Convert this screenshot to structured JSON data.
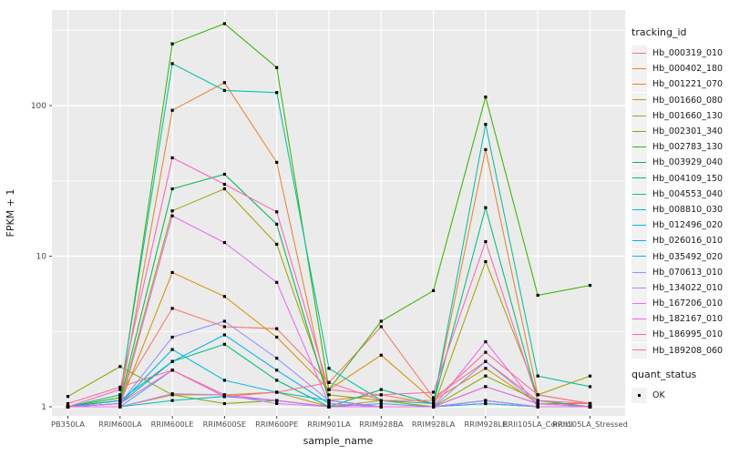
{
  "chart_data": {
    "type": "line",
    "title": "",
    "xlabel": "sample_name",
    "ylabel": "FPKM + 1",
    "yscale": "log10",
    "ylim": [
      0.87,
      434
    ],
    "grid": true,
    "legend_position": "right",
    "y_ticks": {
      "values": [
        1,
        10,
        100
      ],
      "labels": [
        "1",
        "10",
        "100"
      ]
    },
    "y_minor_ticks": [
      3.162,
      31.62,
      316.2
    ],
    "categories": [
      "PB350LA",
      "RRIM600LA",
      "RRIM600LE",
      "RRIM600SE",
      "RRIM600PE",
      "RRIM901LA",
      "RRIM928BA",
      "RRIM928LA",
      "RRIM928LE",
      "RRII105LA_Control",
      "RRII105LA_Stressed"
    ],
    "series": [
      {
        "name": "Hb_000319_010",
        "color": "#F8766D",
        "values": [
          1.0,
          1.2,
          4.5,
          3.4,
          3.3,
          1.45,
          3.4,
          1.15,
          2.0,
          1.1,
          1.0
        ]
      },
      {
        "name": "Hb_000402_180",
        "color": "#EA8331",
        "values": [
          1.0,
          1.1,
          93,
          142,
          42,
          1.1,
          1.2,
          1.05,
          51,
          1.2,
          1.05
        ]
      },
      {
        "name": "Hb_001221_070",
        "color": "#D89000",
        "values": [
          1.0,
          1.05,
          7.8,
          5.4,
          2.9,
          1.3,
          2.2,
          1.1,
          1.8,
          1.05,
          1.05
        ]
      },
      {
        "name": "Hb_001660_080",
        "color": "#C09B00",
        "values": [
          1.0,
          1.0,
          1.2,
          1.2,
          1.25,
          1.0,
          1.1,
          1.0,
          1.1,
          1.0,
          1.0
        ]
      },
      {
        "name": "Hb_001660_130",
        "color": "#A3A500",
        "values": [
          1.0,
          1.05,
          20,
          28,
          12,
          1.2,
          1.1,
          1.0,
          9.2,
          1.2,
          1.6
        ]
      },
      {
        "name": "Hb_002301_340",
        "color": "#7CAE00",
        "values": [
          1.17,
          1.85,
          1.2,
          1.05,
          1.1,
          1.0,
          1.0,
          1.0,
          1.6,
          1.1,
          1.0
        ]
      },
      {
        "name": "Hb_002783_130",
        "color": "#39B600",
        "values": [
          1.0,
          1.15,
          257,
          350,
          179,
          1.3,
          3.7,
          5.9,
          114,
          5.5,
          6.4
        ]
      },
      {
        "name": "Hb_003929_040",
        "color": "#00BB4E",
        "values": [
          1.0,
          1.1,
          28,
          35,
          16.3,
          1.1,
          1.0,
          1.0,
          1.05,
          1.0,
          1.0
        ]
      },
      {
        "name": "Hb_004109_150",
        "color": "#00BF7D",
        "values": [
          1.0,
          1.05,
          2.0,
          2.6,
          1.5,
          1.0,
          1.3,
          1.05,
          21,
          1.1,
          1.0
        ]
      },
      {
        "name": "Hb_004553_040",
        "color": "#00C1A3",
        "values": [
          1.0,
          1.2,
          190,
          126,
          122,
          1.8,
          1.1,
          1.05,
          75,
          1.6,
          1.36
        ]
      },
      {
        "name": "Hb_008810_030",
        "color": "#00BFC4",
        "values": [
          1.0,
          1.0,
          1.1,
          1.17,
          1.1,
          1.0,
          1.0,
          1.0,
          1.1,
          1.0,
          1.0
        ]
      },
      {
        "name": "Hb_012496_020",
        "color": "#00BAE0",
        "values": [
          1.0,
          1.05,
          2.4,
          1.5,
          1.25,
          1.1,
          1.0,
          1.0,
          1.36,
          1.05,
          1.0
        ]
      },
      {
        "name": "Hb_026016_010",
        "color": "#00B0F6",
        "values": [
          1.0,
          1.1,
          2.0,
          3.0,
          1.75,
          1.05,
          1.0,
          1.0,
          1.1,
          1.0,
          1.0
        ]
      },
      {
        "name": "Hb_035492_020",
        "color": "#35A2FF",
        "values": [
          1.0,
          1.0,
          1.75,
          1.17,
          1.1,
          1.0,
          1.05,
          1.0,
          1.05,
          1.0,
          1.0
        ]
      },
      {
        "name": "Hb_070613_010",
        "color": "#9590FF",
        "values": [
          1.0,
          1.05,
          2.9,
          3.7,
          2.1,
          1.1,
          1.0,
          1.0,
          2.0,
          1.05,
          1.0
        ]
      },
      {
        "name": "Hb_134022_010",
        "color": "#C77CFF",
        "values": [
          1.0,
          1.0,
          1.22,
          1.2,
          1.05,
          1.0,
          1.0,
          1.0,
          1.1,
          1.0,
          1.0
        ]
      },
      {
        "name": "Hb_167206_010",
        "color": "#E76BF3",
        "values": [
          1.0,
          1.0,
          18.5,
          12.3,
          6.7,
          1.05,
          1.0,
          1.0,
          2.7,
          1.0,
          1.0
        ]
      },
      {
        "name": "Hb_182167_010",
        "color": "#FA62DB",
        "values": [
          1.0,
          1.05,
          1.75,
          1.2,
          1.1,
          1.0,
          1.0,
          1.0,
          1.36,
          1.05,
          1.0
        ]
      },
      {
        "name": "Hb_186995_010",
        "color": "#FF62BC",
        "values": [
          1.0,
          1.3,
          45,
          30,
          19.7,
          1.3,
          1.2,
          1.25,
          12.5,
          1.1,
          1.05
        ]
      },
      {
        "name": "Hb_189208_060",
        "color": "#FF6A98",
        "values": [
          1.05,
          1.35,
          1.75,
          1.17,
          1.25,
          1.45,
          1.1,
          1.1,
          2.3,
          1.2,
          1.05
        ]
      }
    ],
    "legends": {
      "color": {
        "title": "tracking_id"
      },
      "shape": {
        "title": "quant_status",
        "entries": [
          "OK"
        ]
      }
    },
    "style": {
      "panel_bg": "#EBEBEB",
      "grid_color": "#FFFFFF",
      "tick_color": "#333333",
      "tick_label_color": "#4D4D4D",
      "point_color": "#000000"
    }
  }
}
